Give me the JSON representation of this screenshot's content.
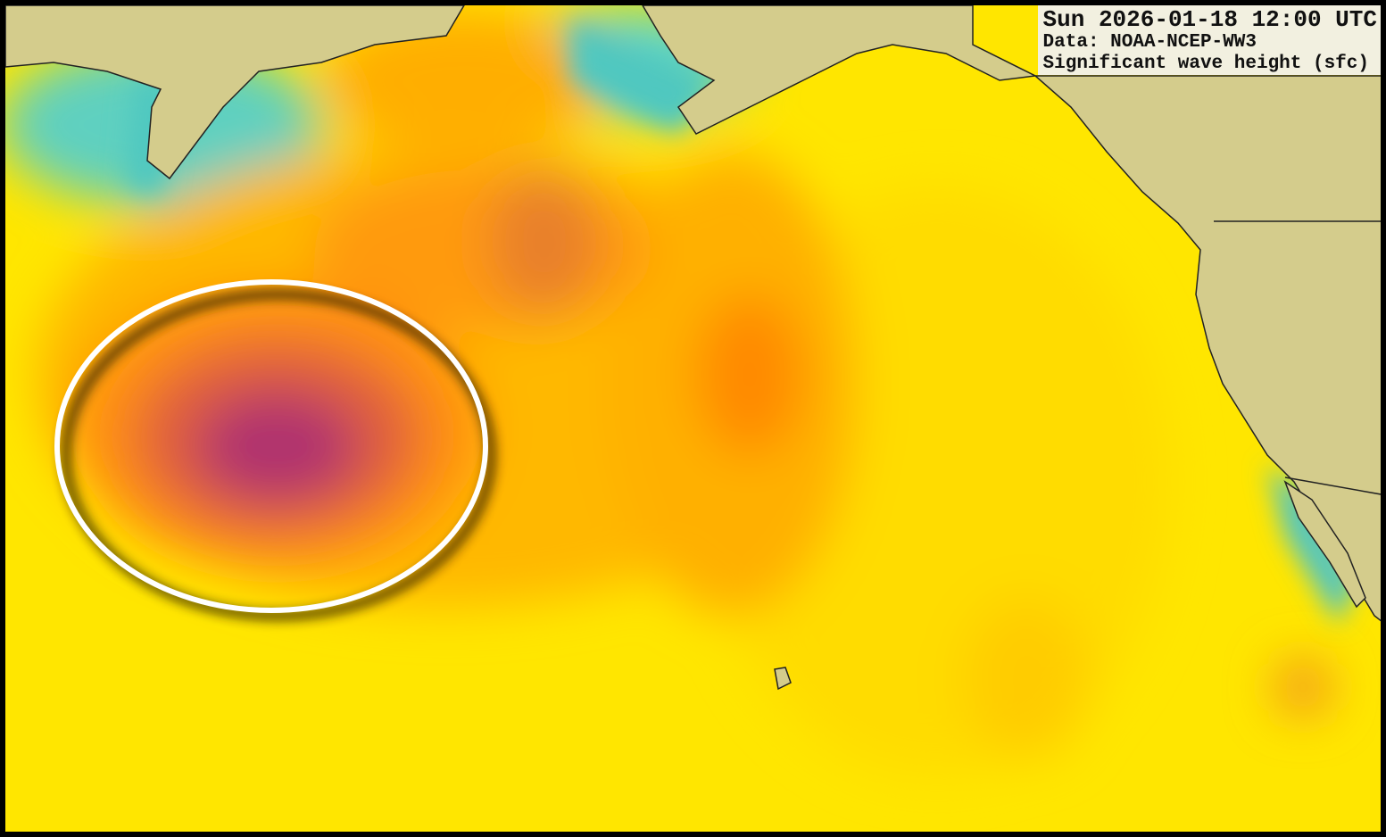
{
  "label": {
    "time": "Sun 2026-01-18 12:00 UTC",
    "source": "Data: NOAA-NCEP-WW3",
    "field": "Significant wave height (sfc)"
  }
}
